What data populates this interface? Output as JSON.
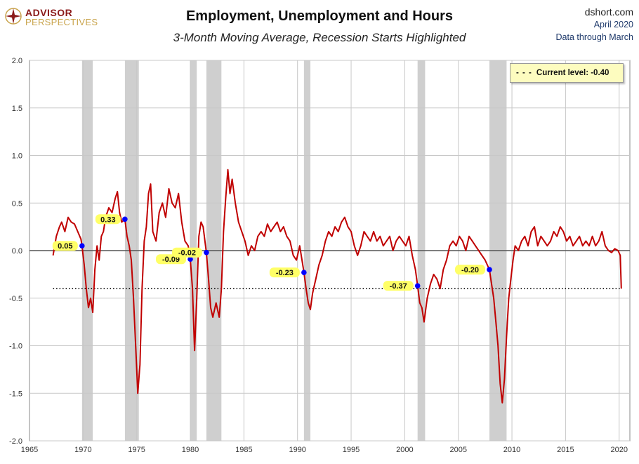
{
  "branding": {
    "line1": "ADVISOR",
    "line2": "PERSPECTIVES"
  },
  "header": {
    "title": "Employment, Unemployment and Hours",
    "subtitle": "3-Month Moving Average,  Recession Starts Highlighted"
  },
  "source": {
    "site": "dshort.com",
    "date": "April 2020",
    "through": "Data through March"
  },
  "legend": {
    "dash": "- - -",
    "label": "Current level:  -0.40"
  },
  "colors": {
    "line": "#c00000",
    "recession": "#cfcfcf",
    "marker": "#0000ff",
    "callout": "#ffff66",
    "legend_bg": "#fdfcbf"
  },
  "chart_data": {
    "type": "line",
    "title": "Employment, Unemployment and Hours",
    "subtitle": "3-Month Moving Average,  Recession Starts Highlighted",
    "xlim": [
      1965,
      2021
    ],
    "ylim": [
      -2.0,
      2.0
    ],
    "x_ticks": [
      "1965",
      "1970",
      "1975",
      "1980",
      "1985",
      "1990",
      "1995",
      "2000",
      "2005",
      "2010",
      "2015",
      "2020"
    ],
    "y_ticks": [
      "2.0",
      "1.5",
      "1.0",
      "0.5",
      "0.0",
      "-0.5",
      "-1.0",
      "-1.5",
      "-2.0"
    ],
    "grid": true,
    "recessions": [
      [
        1969.9,
        1970.9
      ],
      [
        1973.9,
        1975.2
      ],
      [
        1980.0,
        1980.6
      ],
      [
        1981.5,
        1982.9
      ],
      [
        1990.6,
        1991.2
      ],
      [
        2001.2,
        2001.9
      ],
      [
        2007.9,
        2009.5
      ]
    ],
    "current_level": -0.4,
    "recession_start_values": [
      {
        "x": 1969.9,
        "y": 0.05,
        "label": "0.05"
      },
      {
        "x": 1973.9,
        "y": 0.33,
        "label": "0.33"
      },
      {
        "x": 1980.0,
        "y": -0.09,
        "label": "-0.09"
      },
      {
        "x": 1981.5,
        "y": -0.02,
        "label": "-0.02"
      },
      {
        "x": 1990.6,
        "y": -0.23,
        "label": "-0.23"
      },
      {
        "x": 2001.2,
        "y": -0.37,
        "label": "-0.37"
      },
      {
        "x": 2007.9,
        "y": -0.2,
        "label": "-0.20"
      }
    ],
    "series": [
      {
        "values": [
          [
            1967.2,
            -0.05
          ],
          [
            1967.5,
            0.15
          ],
          [
            1967.8,
            0.25
          ],
          [
            1968.0,
            0.3
          ],
          [
            1968.3,
            0.2
          ],
          [
            1968.6,
            0.35
          ],
          [
            1968.9,
            0.3
          ],
          [
            1969.2,
            0.28
          ],
          [
            1969.5,
            0.2
          ],
          [
            1969.8,
            0.12
          ],
          [
            1969.9,
            0.05
          ],
          [
            1970.1,
            -0.15
          ],
          [
            1970.3,
            -0.4
          ],
          [
            1970.5,
            -0.6
          ],
          [
            1970.7,
            -0.5
          ],
          [
            1970.9,
            -0.65
          ],
          [
            1971.1,
            -0.2
          ],
          [
            1971.3,
            0.05
          ],
          [
            1971.5,
            -0.1
          ],
          [
            1971.7,
            0.15
          ],
          [
            1971.9,
            0.2
          ],
          [
            1972.1,
            0.35
          ],
          [
            1972.4,
            0.45
          ],
          [
            1972.7,
            0.4
          ],
          [
            1973.0,
            0.55
          ],
          [
            1973.2,
            0.62
          ],
          [
            1973.4,
            0.4
          ],
          [
            1973.6,
            0.3
          ],
          [
            1973.9,
            0.33
          ],
          [
            1974.1,
            0.15
          ],
          [
            1974.3,
            0.05
          ],
          [
            1974.5,
            -0.1
          ],
          [
            1974.7,
            -0.5
          ],
          [
            1974.9,
            -1.0
          ],
          [
            1975.1,
            -1.5
          ],
          [
            1975.3,
            -1.2
          ],
          [
            1975.5,
            -0.4
          ],
          [
            1975.7,
            0.1
          ],
          [
            1975.9,
            0.25
          ],
          [
            1976.1,
            0.6
          ],
          [
            1976.3,
            0.7
          ],
          [
            1976.5,
            0.2
          ],
          [
            1976.8,
            0.1
          ],
          [
            1977.1,
            0.4
          ],
          [
            1977.4,
            0.5
          ],
          [
            1977.7,
            0.35
          ],
          [
            1978.0,
            0.65
          ],
          [
            1978.3,
            0.5
          ],
          [
            1978.6,
            0.45
          ],
          [
            1978.9,
            0.6
          ],
          [
            1979.2,
            0.3
          ],
          [
            1979.5,
            0.1
          ],
          [
            1979.8,
            0.05
          ],
          [
            1980.0,
            -0.09
          ],
          [
            1980.2,
            -0.4
          ],
          [
            1980.4,
            -1.05
          ],
          [
            1980.6,
            -0.5
          ],
          [
            1980.8,
            0.15
          ],
          [
            1981.0,
            0.3
          ],
          [
            1981.2,
            0.25
          ],
          [
            1981.5,
            -0.02
          ],
          [
            1981.7,
            -0.3
          ],
          [
            1981.9,
            -0.6
          ],
          [
            1982.1,
            -0.7
          ],
          [
            1982.4,
            -0.55
          ],
          [
            1982.7,
            -0.7
          ],
          [
            1982.9,
            -0.4
          ],
          [
            1983.1,
            0.2
          ],
          [
            1983.3,
            0.55
          ],
          [
            1983.5,
            0.85
          ],
          [
            1983.7,
            0.6
          ],
          [
            1983.9,
            0.75
          ],
          [
            1984.2,
            0.5
          ],
          [
            1984.5,
            0.3
          ],
          [
            1984.8,
            0.2
          ],
          [
            1985.1,
            0.1
          ],
          [
            1985.4,
            -0.05
          ],
          [
            1985.7,
            0.05
          ],
          [
            1986.0,
            0.0
          ],
          [
            1986.3,
            0.15
          ],
          [
            1986.6,
            0.2
          ],
          [
            1986.9,
            0.15
          ],
          [
            1987.2,
            0.28
          ],
          [
            1987.5,
            0.2
          ],
          [
            1987.8,
            0.25
          ],
          [
            1988.1,
            0.3
          ],
          [
            1988.4,
            0.2
          ],
          [
            1988.7,
            0.25
          ],
          [
            1989.0,
            0.15
          ],
          [
            1989.3,
            0.1
          ],
          [
            1989.6,
            -0.05
          ],
          [
            1989.9,
            -0.1
          ],
          [
            1990.2,
            0.05
          ],
          [
            1990.6,
            -0.23
          ],
          [
            1990.8,
            -0.4
          ],
          [
            1991.0,
            -0.55
          ],
          [
            1991.2,
            -0.62
          ],
          [
            1991.4,
            -0.45
          ],
          [
            1991.7,
            -0.3
          ],
          [
            1992.0,
            -0.15
          ],
          [
            1992.3,
            -0.05
          ],
          [
            1992.6,
            0.1
          ],
          [
            1992.9,
            0.2
          ],
          [
            1993.2,
            0.15
          ],
          [
            1993.5,
            0.25
          ],
          [
            1993.8,
            0.2
          ],
          [
            1994.1,
            0.3
          ],
          [
            1994.4,
            0.35
          ],
          [
            1994.7,
            0.25
          ],
          [
            1995.0,
            0.2
          ],
          [
            1995.3,
            0.05
          ],
          [
            1995.6,
            -0.05
          ],
          [
            1995.9,
            0.05
          ],
          [
            1996.2,
            0.2
          ],
          [
            1996.5,
            0.15
          ],
          [
            1996.8,
            0.1
          ],
          [
            1997.1,
            0.2
          ],
          [
            1997.4,
            0.1
          ],
          [
            1997.7,
            0.15
          ],
          [
            1998.0,
            0.05
          ],
          [
            1998.3,
            0.1
          ],
          [
            1998.6,
            0.15
          ],
          [
            1998.9,
            0.0
          ],
          [
            1999.2,
            0.1
          ],
          [
            1999.5,
            0.15
          ],
          [
            1999.8,
            0.1
          ],
          [
            2000.1,
            0.05
          ],
          [
            2000.4,
            0.15
          ],
          [
            2000.7,
            -0.05
          ],
          [
            2001.0,
            -0.2
          ],
          [
            2001.2,
            -0.37
          ],
          [
            2001.4,
            -0.55
          ],
          [
            2001.6,
            -0.6
          ],
          [
            2001.8,
            -0.75
          ],
          [
            2002.1,
            -0.5
          ],
          [
            2002.4,
            -0.35
          ],
          [
            2002.7,
            -0.25
          ],
          [
            2003.0,
            -0.3
          ],
          [
            2003.3,
            -0.4
          ],
          [
            2003.6,
            -0.2
          ],
          [
            2003.9,
            -0.1
          ],
          [
            2004.2,
            0.05
          ],
          [
            2004.5,
            0.1
          ],
          [
            2004.8,
            0.05
          ],
          [
            2005.1,
            0.15
          ],
          [
            2005.4,
            0.1
          ],
          [
            2005.7,
            0.0
          ],
          [
            2006.0,
            0.15
          ],
          [
            2006.3,
            0.1
          ],
          [
            2006.6,
            0.05
          ],
          [
            2006.9,
            0.0
          ],
          [
            2007.2,
            -0.05
          ],
          [
            2007.5,
            -0.1
          ],
          [
            2007.9,
            -0.2
          ],
          [
            2008.1,
            -0.35
          ],
          [
            2008.3,
            -0.5
          ],
          [
            2008.5,
            -0.75
          ],
          [
            2008.7,
            -1.0
          ],
          [
            2008.9,
            -1.4
          ],
          [
            2009.1,
            -1.6
          ],
          [
            2009.3,
            -1.35
          ],
          [
            2009.5,
            -0.9
          ],
          [
            2009.7,
            -0.5
          ],
          [
            2009.9,
            -0.3
          ],
          [
            2010.1,
            -0.1
          ],
          [
            2010.3,
            0.05
          ],
          [
            2010.6,
            0.0
          ],
          [
            2010.9,
            0.1
          ],
          [
            2011.2,
            0.15
          ],
          [
            2011.5,
            0.05
          ],
          [
            2011.8,
            0.2
          ],
          [
            2012.1,
            0.25
          ],
          [
            2012.4,
            0.05
          ],
          [
            2012.7,
            0.15
          ],
          [
            2013.0,
            0.1
          ],
          [
            2013.3,
            0.05
          ],
          [
            2013.6,
            0.1
          ],
          [
            2013.9,
            0.2
          ],
          [
            2014.2,
            0.15
          ],
          [
            2014.5,
            0.25
          ],
          [
            2014.8,
            0.2
          ],
          [
            2015.1,
            0.1
          ],
          [
            2015.4,
            0.15
          ],
          [
            2015.7,
            0.05
          ],
          [
            2016.0,
            0.1
          ],
          [
            2016.3,
            0.15
          ],
          [
            2016.6,
            0.05
          ],
          [
            2016.9,
            0.1
          ],
          [
            2017.2,
            0.05
          ],
          [
            2017.5,
            0.15
          ],
          [
            2017.8,
            0.05
          ],
          [
            2018.1,
            0.1
          ],
          [
            2018.4,
            0.2
          ],
          [
            2018.7,
            0.05
          ],
          [
            2019.0,
            0.0
          ],
          [
            2019.3,
            -0.02
          ],
          [
            2019.6,
            0.02
          ],
          [
            2019.9,
            0.0
          ],
          [
            2020.1,
            -0.05
          ],
          [
            2020.2,
            -0.4
          ]
        ]
      }
    ]
  }
}
